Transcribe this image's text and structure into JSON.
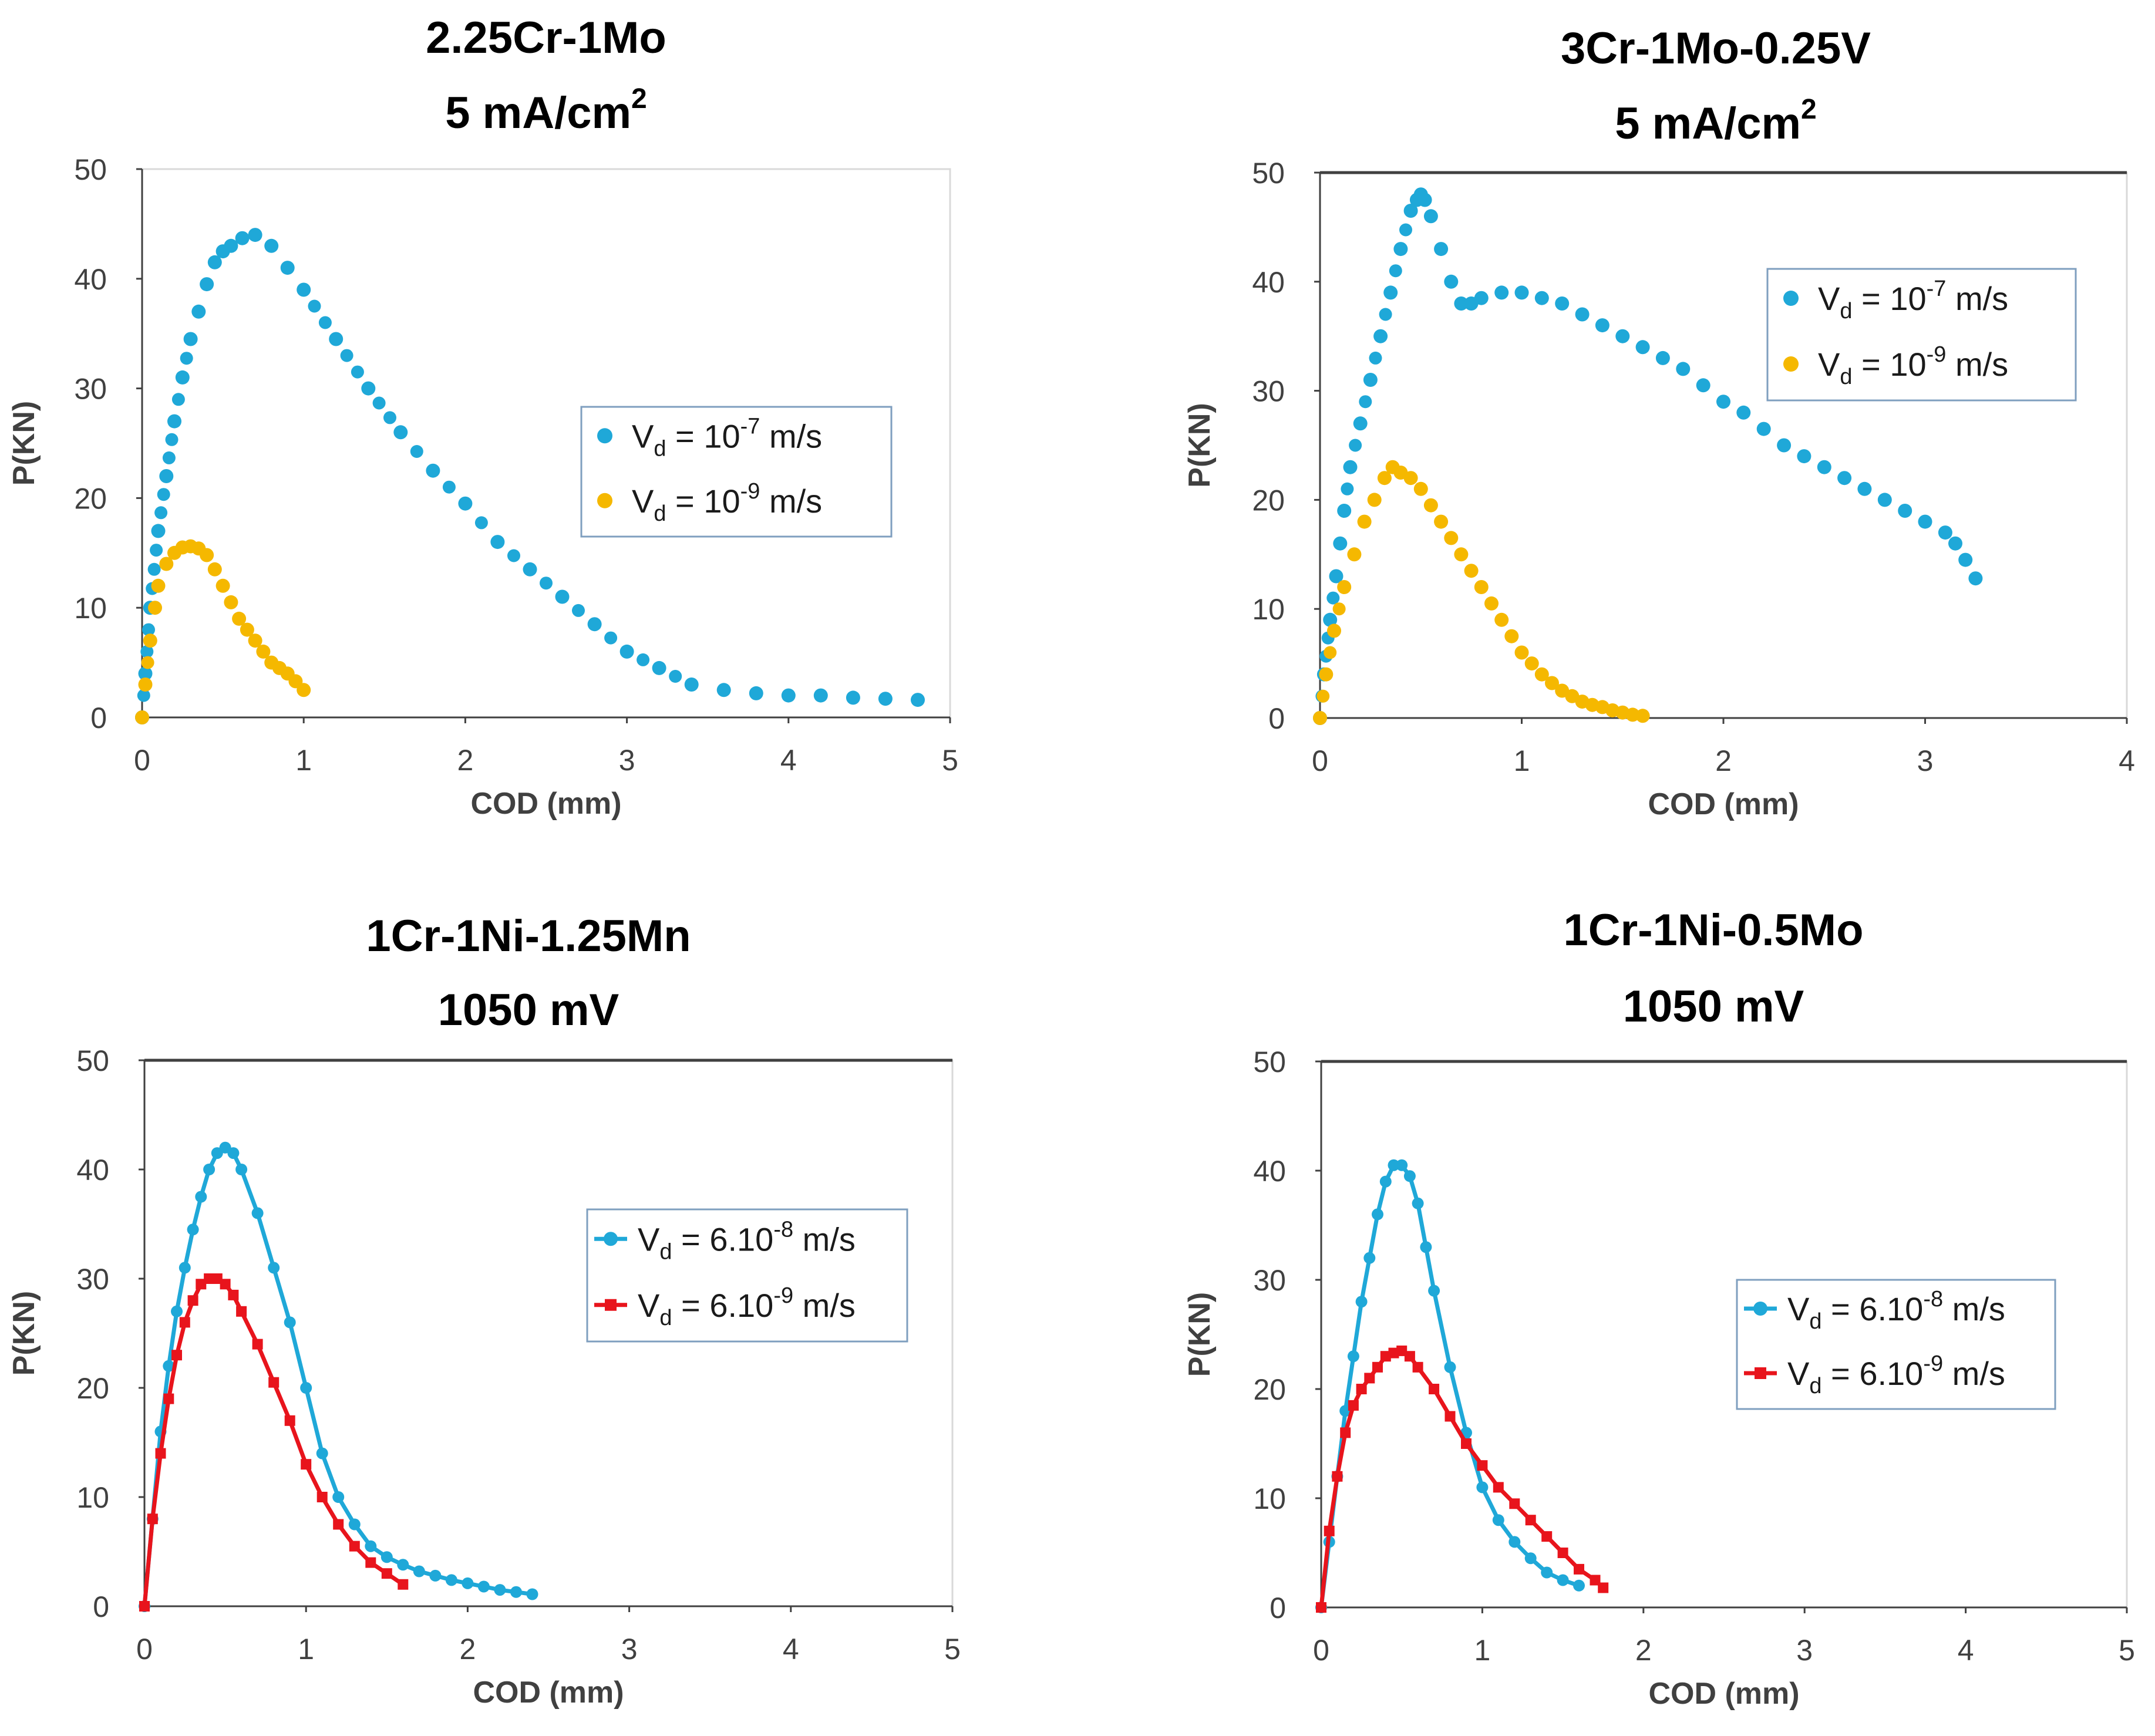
{
  "chart_data": [
    {
      "type": "scatter",
      "title": "2.25Cr-1Mo",
      "subtitle": "5 mA/cm²",
      "xlabel": "COD (mm)",
      "ylabel": "P(KN)",
      "xlim": [
        0,
        5
      ],
      "ylim": [
        0,
        50
      ],
      "xticks": [
        "0",
        "1",
        "2",
        "3",
        "4",
        "5"
      ],
      "yticks": [
        "0",
        "10",
        "20",
        "30",
        "40",
        "50"
      ],
      "legend_position": "center-right",
      "series": [
        {
          "name": "Vd = 10⁻⁷ m/s",
          "label_main": "V",
          "label_sub": "d",
          "label_mid": " = 10",
          "label_exp": "-7",
          "label_tail": " m/s",
          "color": "#1fa8d8",
          "style": "dots",
          "x": [
            0,
            0.02,
            0.05,
            0.1,
            0.15,
            0.2,
            0.25,
            0.3,
            0.35,
            0.4,
            0.45,
            0.5,
            0.55,
            0.62,
            0.7,
            0.8,
            0.9,
            1.0,
            1.2,
            1.4,
            1.6,
            1.8,
            2.0,
            2.2,
            2.4,
            2.6,
            2.8,
            3.0,
            3.2,
            3.4,
            3.6,
            3.8,
            4.0,
            4.2,
            4.4,
            4.6,
            4.8
          ],
          "y": [
            0,
            4,
            10,
            17,
            22,
            27,
            31,
            34.5,
            37,
            39.5,
            41.5,
            42.5,
            43,
            43.7,
            44,
            43,
            41,
            39,
            34.5,
            30,
            26,
            22.5,
            19.5,
            16,
            13.5,
            11,
            8.5,
            6,
            4.5,
            3,
            2.5,
            2.2,
            2,
            2,
            1.8,
            1.7,
            1.6
          ]
        },
        {
          "name": "Vd = 10⁻⁹ m/s",
          "label_main": "V",
          "label_sub": "d",
          "label_mid": " = 10",
          "label_exp": "-9",
          "label_tail": " m/s",
          "color": "#f5b800",
          "style": "dots",
          "x": [
            0,
            0.02,
            0.05,
            0.08,
            0.1,
            0.15,
            0.2,
            0.25,
            0.3,
            0.35,
            0.4,
            0.45,
            0.5,
            0.55,
            0.6,
            0.65,
            0.7,
            0.75,
            0.8,
            0.85,
            0.9,
            0.95,
            1.0
          ],
          "y": [
            0,
            3,
            7,
            10,
            12,
            14,
            15,
            15.5,
            15.6,
            15.4,
            14.8,
            13.5,
            12,
            10.5,
            9,
            8,
            7,
            6,
            5,
            4.5,
            4,
            3.3,
            2.5
          ]
        }
      ]
    },
    {
      "type": "scatter",
      "title": "3Cr-1Mo-0.25V",
      "subtitle": "5 mA/cm²",
      "xlabel": "COD (mm)",
      "ylabel": "P(KN)",
      "xlim": [
        0,
        4
      ],
      "ylim": [
        0,
        50
      ],
      "xticks": [
        "0",
        "1",
        "2",
        "3",
        "4"
      ],
      "yticks": [
        "0",
        "10",
        "20",
        "30",
        "40",
        "50"
      ],
      "legend_position": "top-right",
      "series": [
        {
          "name": "Vd = 10⁻⁷ m/s",
          "label_main": "V",
          "label_sub": "d",
          "label_mid": " = 10",
          "label_exp": "-7",
          "label_tail": " m/s",
          "color": "#1fa8d8",
          "style": "dots",
          "x": [
            0,
            0.02,
            0.05,
            0.08,
            0.1,
            0.12,
            0.15,
            0.2,
            0.25,
            0.3,
            0.35,
            0.4,
            0.45,
            0.48,
            0.5,
            0.52,
            0.55,
            0.6,
            0.65,
            0.7,
            0.75,
            0.8,
            0.9,
            1.0,
            1.1,
            1.2,
            1.3,
            1.4,
            1.5,
            1.6,
            1.7,
            1.8,
            1.9,
            2.0,
            2.1,
            2.2,
            2.3,
            2.4,
            2.5,
            2.6,
            2.7,
            2.8,
            2.9,
            3.0,
            3.1,
            3.15,
            3.2,
            3.25
          ],
          "y": [
            0,
            4,
            9,
            13,
            16,
            19,
            23,
            27,
            31,
            35,
            39,
            43,
            46.5,
            47.5,
            48,
            47.5,
            46,
            43,
            40,
            38,
            38,
            38.5,
            39,
            39,
            38.5,
            38,
            37,
            36,
            35,
            34,
            33,
            32,
            30.5,
            29,
            28,
            26.5,
            25,
            24,
            23,
            22,
            21,
            20,
            19,
            18,
            17,
            16,
            14.5,
            12.8
          ]
        },
        {
          "name": "Vd = 10⁻⁹ m/s",
          "label_main": "V",
          "label_sub": "d",
          "label_mid": " = 10",
          "label_exp": "-9",
          "label_tail": " m/s",
          "color": "#f5b800",
          "style": "dots",
          "x": [
            0,
            0.03,
            0.07,
            0.12,
            0.17,
            0.22,
            0.27,
            0.32,
            0.36,
            0.4,
            0.45,
            0.5,
            0.55,
            0.6,
            0.65,
            0.7,
            0.75,
            0.8,
            0.85,
            0.9,
            0.95,
            1.0,
            1.05,
            1.1,
            1.15,
            1.2,
            1.25,
            1.3,
            1.35,
            1.4,
            1.45,
            1.5,
            1.55,
            1.6
          ],
          "y": [
            0,
            4,
            8,
            12,
            15,
            18,
            20,
            22,
            23,
            22.5,
            22,
            21,
            19.5,
            18,
            16.5,
            15,
            13.5,
            12,
            10.5,
            9,
            7.5,
            6,
            5,
            4,
            3.2,
            2.5,
            2,
            1.5,
            1.2,
            1,
            0.7,
            0.5,
            0.3,
            0.2
          ]
        }
      ]
    },
    {
      "type": "line",
      "title": "1Cr-1Ni-1.25Mn",
      "subtitle": "1050 mV",
      "xlabel": "COD (mm)",
      "ylabel": "P(KN)",
      "xlim": [
        0,
        5
      ],
      "ylim": [
        0,
        50
      ],
      "xticks": [
        "0",
        "1",
        "2",
        "3",
        "4",
        "5"
      ],
      "yticks": [
        "0",
        "10",
        "20",
        "30",
        "40",
        "50"
      ],
      "legend_position": "center-right",
      "series": [
        {
          "name": "Vd = 6.10⁻⁸ m/s",
          "label_main": "V",
          "label_sub": "d",
          "label_mid": " = 6.10",
          "label_exp": "-8",
          "label_tail": " m/s",
          "color": "#1fa8d8",
          "style": "line-diamond",
          "x": [
            0,
            0.05,
            0.1,
            0.15,
            0.2,
            0.25,
            0.3,
            0.35,
            0.4,
            0.45,
            0.5,
            0.55,
            0.6,
            0.7,
            0.8,
            0.9,
            1.0,
            1.1,
            1.2,
            1.3,
            1.4,
            1.5,
            1.6,
            1.7,
            1.8,
            1.9,
            2.0,
            2.1,
            2.2,
            2.3,
            2.4
          ],
          "y": [
            0,
            8,
            16,
            22,
            27,
            31,
            34.5,
            37.5,
            40,
            41.5,
            42,
            41.5,
            40,
            36,
            31,
            26,
            20,
            14,
            10,
            7.5,
            5.5,
            4.5,
            3.8,
            3.2,
            2.8,
            2.4,
            2.1,
            1.8,
            1.5,
            1.3,
            1.1
          ]
        },
        {
          "name": "Vd = 6.10⁻⁹ m/s",
          "label_main": "V",
          "label_sub": "d",
          "label_mid": " = 6.10",
          "label_exp": "-9",
          "label_tail": " m/s",
          "color": "#e8141c",
          "style": "line-square",
          "x": [
            0,
            0.05,
            0.1,
            0.15,
            0.2,
            0.25,
            0.3,
            0.35,
            0.4,
            0.45,
            0.5,
            0.55,
            0.6,
            0.7,
            0.8,
            0.9,
            1.0,
            1.1,
            1.2,
            1.3,
            1.4,
            1.5,
            1.6
          ],
          "y": [
            0,
            8,
            14,
            19,
            23,
            26,
            28,
            29.5,
            30,
            30,
            29.5,
            28.5,
            27,
            24,
            20.5,
            17,
            13,
            10,
            7.5,
            5.5,
            4,
            3,
            2
          ]
        }
      ]
    },
    {
      "type": "line",
      "title": "1Cr-1Ni-0.5Mo",
      "subtitle": "1050 mV",
      "xlabel": "COD (mm)",
      "ylabel": "P(KN)",
      "xlim": [
        0,
        5
      ],
      "ylim": [
        0,
        50
      ],
      "xticks": [
        "0",
        "1",
        "2",
        "3",
        "4",
        "5"
      ],
      "yticks": [
        "0",
        "10",
        "20",
        "30",
        "40",
        "50"
      ],
      "legend_position": "center-right",
      "series": [
        {
          "name": "Vd = 6.10⁻⁸ m/s",
          "label_main": "V",
          "label_sub": "d",
          "label_mid": " = 6.10",
          "label_exp": "-8",
          "label_tail": " m/s",
          "color": "#1fa8d8",
          "style": "line-diamond",
          "x": [
            0,
            0.05,
            0.1,
            0.15,
            0.2,
            0.25,
            0.3,
            0.35,
            0.4,
            0.45,
            0.5,
            0.55,
            0.6,
            0.65,
            0.7,
            0.8,
            0.9,
            1.0,
            1.1,
            1.2,
            1.3,
            1.4,
            1.5,
            1.6
          ],
          "y": [
            0,
            6,
            12,
            18,
            23,
            28,
            32,
            36,
            39,
            40.5,
            40.5,
            39.5,
            37,
            33,
            29,
            22,
            16,
            11,
            8,
            6,
            4.5,
            3.2,
            2.5,
            2
          ]
        },
        {
          "name": "Vd = 6.10⁻⁹ m/s",
          "label_main": "V",
          "label_sub": "d",
          "label_mid": " = 6.10",
          "label_exp": "-9",
          "label_tail": " m/s",
          "color": "#e8141c",
          "style": "line-square",
          "x": [
            0,
            0.05,
            0.1,
            0.15,
            0.2,
            0.25,
            0.3,
            0.35,
            0.4,
            0.45,
            0.5,
            0.55,
            0.6,
            0.7,
            0.8,
            0.9,
            1.0,
            1.1,
            1.2,
            1.3,
            1.4,
            1.5,
            1.6,
            1.7,
            1.75
          ],
          "y": [
            0,
            7,
            12,
            16,
            18.5,
            20,
            21,
            22,
            23,
            23.3,
            23.5,
            23,
            22,
            20,
            17.5,
            15,
            13,
            11,
            9.5,
            8,
            6.5,
            5,
            3.5,
            2.5,
            1.8
          ]
        }
      ]
    }
  ]
}
